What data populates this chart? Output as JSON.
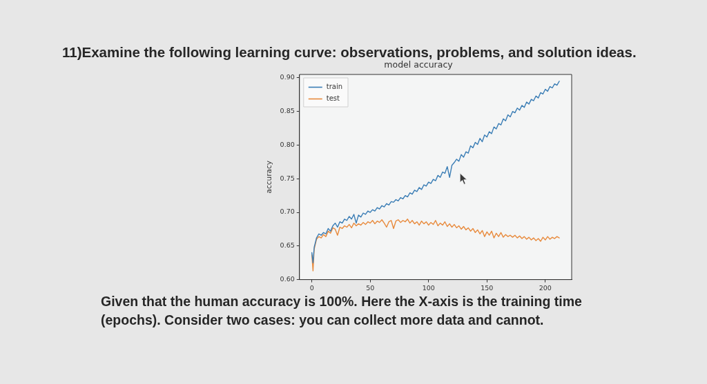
{
  "chart_data": {
    "type": "line",
    "title": "model accuracy",
    "ylabel": "accuracy",
    "annotations": [
      "11)Examine the following learning curve: observations, problems, and solution ideas.",
      "Given that the human accuracy is 100%. Here the X-axis is the training time (epochs). Consider two cases: you can collect more data and cannot."
    ],
    "x": [
      0,
      1,
      2,
      4,
      6,
      8,
      10,
      12,
      14,
      16,
      18,
      20,
      22,
      24,
      26,
      28,
      30,
      32,
      34,
      36,
      38,
      40,
      42,
      44,
      46,
      48,
      50,
      52,
      54,
      56,
      58,
      60,
      62,
      64,
      66,
      68,
      70,
      72,
      74,
      76,
      78,
      80,
      82,
      84,
      86,
      88,
      90,
      92,
      94,
      96,
      98,
      100,
      102,
      104,
      106,
      108,
      110,
      112,
      114,
      116,
      118,
      120,
      122,
      124,
      126,
      128,
      130,
      132,
      134,
      136,
      138,
      140,
      142,
      144,
      146,
      148,
      150,
      152,
      154,
      156,
      158,
      160,
      162,
      164,
      166,
      168,
      170,
      172,
      174,
      176,
      178,
      180,
      182,
      184,
      186,
      188,
      190,
      192,
      194,
      196,
      198,
      200,
      202,
      204,
      206,
      208,
      210,
      212
    ],
    "series": [
      {
        "name": "train",
        "color": "#3a7db5",
        "values": [
          0.64,
          0.625,
          0.648,
          0.662,
          0.668,
          0.666,
          0.67,
          0.668,
          0.676,
          0.672,
          0.68,
          0.684,
          0.678,
          0.686,
          0.684,
          0.69,
          0.688,
          0.694,
          0.69,
          0.697,
          0.684,
          0.696,
          0.693,
          0.699,
          0.697,
          0.702,
          0.7,
          0.704,
          0.702,
          0.707,
          0.705,
          0.71,
          0.708,
          0.713,
          0.711,
          0.716,
          0.715,
          0.719,
          0.717,
          0.722,
          0.72,
          0.725,
          0.723,
          0.729,
          0.727,
          0.733,
          0.731,
          0.737,
          0.734,
          0.741,
          0.739,
          0.745,
          0.743,
          0.749,
          0.747,
          0.755,
          0.752,
          0.76,
          0.758,
          0.768,
          0.752,
          0.77,
          0.774,
          0.779,
          0.776,
          0.786,
          0.782,
          0.79,
          0.788,
          0.799,
          0.796,
          0.804,
          0.801,
          0.81,
          0.805,
          0.815,
          0.812,
          0.82,
          0.817,
          0.827,
          0.824,
          0.832,
          0.83,
          0.839,
          0.836,
          0.845,
          0.842,
          0.85,
          0.848,
          0.855,
          0.852,
          0.859,
          0.856,
          0.864,
          0.861,
          0.868,
          0.866,
          0.873,
          0.87,
          0.878,
          0.876,
          0.883,
          0.88,
          0.887,
          0.885,
          0.891,
          0.889,
          0.895
        ]
      },
      {
        "name": "test",
        "color": "#e88a3c",
        "values": [
          0.637,
          0.613,
          0.645,
          0.66,
          0.664,
          0.662,
          0.667,
          0.664,
          0.672,
          0.669,
          0.677,
          0.675,
          0.666,
          0.678,
          0.676,
          0.68,
          0.678,
          0.682,
          0.677,
          0.684,
          0.68,
          0.683,
          0.681,
          0.685,
          0.682,
          0.686,
          0.684,
          0.688,
          0.683,
          0.687,
          0.685,
          0.689,
          0.684,
          0.678,
          0.686,
          0.688,
          0.676,
          0.687,
          0.689,
          0.685,
          0.688,
          0.686,
          0.69,
          0.684,
          0.688,
          0.683,
          0.686,
          0.681,
          0.687,
          0.683,
          0.686,
          0.681,
          0.685,
          0.682,
          0.688,
          0.68,
          0.684,
          0.681,
          0.686,
          0.679,
          0.683,
          0.678,
          0.682,
          0.677,
          0.68,
          0.675,
          0.679,
          0.674,
          0.677,
          0.672,
          0.676,
          0.67,
          0.674,
          0.668,
          0.673,
          0.664,
          0.671,
          0.666,
          0.672,
          0.662,
          0.669,
          0.664,
          0.67,
          0.663,
          0.667,
          0.664,
          0.666,
          0.663,
          0.666,
          0.662,
          0.665,
          0.661,
          0.664,
          0.66,
          0.663,
          0.659,
          0.662,
          0.658,
          0.661,
          0.657,
          0.663,
          0.659,
          0.664,
          0.66,
          0.663,
          0.661,
          0.664,
          0.662
        ]
      }
    ],
    "xlim": [
      -10.6,
      222.6
    ],
    "xticks": [
      0,
      50,
      100,
      150,
      200
    ],
    "ylim": [
      0.6,
      0.905
    ],
    "yticks": [
      {
        "value": 0.6,
        "label": "0.60"
      },
      {
        "value": 0.65,
        "label": "0.65"
      },
      {
        "value": 0.7,
        "label": "0.70"
      },
      {
        "value": 0.75,
        "label": "0.75"
      },
      {
        "value": 0.8,
        "label": "0.80"
      },
      {
        "value": 0.85,
        "label": "0.85"
      },
      {
        "value": 0.9,
        "label": "0.90"
      }
    ],
    "grid": false,
    "legend": "top left"
  }
}
